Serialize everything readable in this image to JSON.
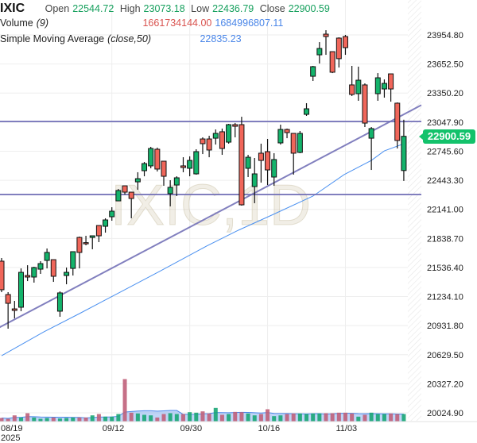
{
  "header": {
    "symbol": "IXIC",
    "open_label": "Open",
    "open": "22544.72",
    "high_label": "High",
    "high": "23073.18",
    "low_label": "Low",
    "low": "22436.79",
    "close_label": "Close",
    "close": "22900.59"
  },
  "volume_legend": {
    "label": "Volume",
    "param": "(9)",
    "value": "1661734144.00",
    "ma_value": "1684996807.11"
  },
  "sma_legend": {
    "label": "Simple Moving Average",
    "param": "(close,50)",
    "value": "22835.23"
  },
  "current_price_label": "22900.59",
  "watermark": "IXIC,1D",
  "colors": {
    "up": "#14b36b",
    "down": "#f0665a",
    "sma": "#4a90f0",
    "drawing_lines": "#7472b8",
    "volume_ma": "#4a86e8",
    "price_tag": "#13c26b"
  },
  "chart_data": {
    "type": "candlestick",
    "y_ticks": [
      "23954.80",
      "23652.50",
      "23350.20",
      "23047.90",
      "22745.60",
      "22443.30",
      "22141.00",
      "21838.70",
      "21536.40",
      "21234.10",
      "20931.80",
      "20629.50",
      "20327.20",
      "20024.90"
    ],
    "ylim": [
      19990,
      24318
    ],
    "x_ticks": [
      {
        "index": 0,
        "label": "08/19",
        "sub": "2025"
      },
      {
        "index": 17,
        "label": "09/12"
      },
      {
        "index": 29,
        "label": "09/30"
      },
      {
        "index": 41,
        "label": "10/16"
      },
      {
        "index": 53,
        "label": "11/03"
      }
    ],
    "grid": true,
    "ohlc": [
      [
        21602,
        21635,
        21280,
        21305
      ],
      [
        21255,
        21280,
        20900,
        21164
      ],
      [
        21106,
        21189,
        21007,
        21090
      ],
      [
        21123,
        21527,
        21082,
        21486
      ],
      [
        21453,
        21560,
        21395,
        21437
      ],
      [
        21437,
        21544,
        21379,
        21536
      ],
      [
        21519,
        21602,
        21470,
        21577
      ],
      [
        21610,
        21734,
        21527,
        21693
      ],
      [
        21618,
        21618,
        21387,
        21445
      ],
      [
        21082,
        21288,
        21024,
        21272
      ],
      [
        21453,
        21536,
        21362,
        21486
      ],
      [
        21527,
        21701,
        21453,
        21701
      ],
      [
        21849,
        21858,
        21527,
        21693
      ],
      [
        21795,
        21866,
        21767,
        21790
      ],
      [
        21849,
        21866,
        21726,
        21866
      ],
      [
        21973,
        21973,
        21800,
        21866
      ],
      [
        21965,
        22048,
        21899,
        22031
      ],
      [
        22064,
        22163,
        22023,
        22122
      ],
      [
        22229,
        22353,
        22229,
        22337
      ],
      [
        22386,
        22386,
        22295,
        22320
      ],
      [
        22320,
        22320,
        22048,
        22254
      ],
      [
        22427,
        22527,
        22345,
        22460
      ],
      [
        22543,
        22634,
        22485,
        22617
      ],
      [
        22593,
        22791,
        22568,
        22774
      ],
      [
        22766,
        22783,
        22535,
        22560
      ],
      [
        22642,
        22642,
        22386,
        22485
      ],
      [
        22304,
        22444,
        22172,
        22370
      ],
      [
        22394,
        22485,
        22279,
        22469
      ],
      [
        22593,
        22683,
        22527,
        22576
      ],
      [
        22568,
        22692,
        22485,
        22650
      ],
      [
        22510,
        22766,
        22502,
        22741
      ],
      [
        22873,
        22890,
        22716,
        22824
      ],
      [
        22873,
        22906,
        22683,
        22758
      ],
      [
        22881,
        22972,
        22815,
        22931
      ],
      [
        22948,
        22981,
        22708,
        22774
      ],
      [
        22840,
        23030,
        22824,
        23022
      ],
      [
        23022,
        23039,
        22890,
        23005
      ],
      [
        23022,
        23104,
        22180,
        22188
      ],
      [
        22568,
        22708,
        22477,
        22683
      ],
      [
        22378,
        22675,
        22205,
        22510
      ],
      [
        22725,
        22824,
        22419,
        22650
      ],
      [
        22741,
        22873,
        22394,
        22551
      ],
      [
        22477,
        22725,
        22386,
        22659
      ],
      [
        22832,
        23022,
        22815,
        22972
      ],
      [
        22972,
        22981,
        22881,
        22939
      ],
      [
        22931,
        22931,
        22502,
        22725
      ],
      [
        22733,
        22956,
        22725,
        22931
      ],
      [
        23129,
        23245,
        23113,
        23187
      ],
      [
        23525,
        23633,
        23476,
        23625
      ],
      [
        23748,
        23880,
        23658,
        23814
      ],
      [
        23963,
        24004,
        23748,
        23938
      ],
      [
        23781,
        23781,
        23558,
        23567
      ],
      [
        23922,
        23930,
        23616,
        23708
      ],
      [
        23938,
        23955,
        23748,
        23823
      ],
      [
        23435,
        23633,
        23319,
        23336
      ],
      [
        23344,
        23625,
        23270,
        23484
      ],
      [
        23435,
        23451,
        22997,
        23038
      ],
      [
        22881,
        22997,
        22551,
        22981
      ],
      [
        23344,
        23558,
        23270,
        23509
      ],
      [
        23393,
        23492,
        23303,
        23451
      ],
      [
        23550,
        23550,
        23261,
        23393
      ],
      [
        23245,
        23253,
        22774,
        22857
      ],
      [
        22544.72,
        23073.18,
        22436.79,
        22900.59
      ]
    ],
    "sma50": [
      [
        0,
        20619
      ],
      [
        6.5,
        20867
      ],
      [
        12,
        21057
      ],
      [
        18.5,
        21288
      ],
      [
        24.3,
        21494
      ],
      [
        31.6,
        21759
      ],
      [
        36.5,
        21924
      ],
      [
        41.9,
        22089
      ],
      [
        48,
        22279
      ],
      [
        52.8,
        22502
      ],
      [
        57,
        22650
      ],
      [
        59,
        22749
      ],
      [
        61.7,
        22816
      ],
      [
        62,
        22835.23
      ]
    ],
    "volume_millions": [
      740,
      550,
      1350,
      850,
      1850,
      850,
      550,
      740,
      850,
      620,
      740,
      850,
      850,
      850,
      1350,
      1660,
      1050,
      1050,
      1660,
      9790,
      1970,
      1790,
      1480,
      1350,
      850,
      1660,
      1850,
      1660,
      1660,
      2090,
      1970,
      2280,
      1790,
      3080,
      1480,
      1660,
      2150,
      2090,
      1790,
      1350,
      1660,
      2770,
      1170,
      1350,
      1660,
      1790,
      1790,
      1660,
      1790,
      1790,
      1850,
      1850,
      1970,
      1970,
      1790,
      1050,
      1480,
      1970,
      1660,
      1660,
      1790,
      1660,
      1662
    ],
    "horizontal_lines": [
      23055,
      22295
    ],
    "trend_line": [
      [
        0,
        20925
      ],
      [
        62,
        23129
      ]
    ]
  }
}
